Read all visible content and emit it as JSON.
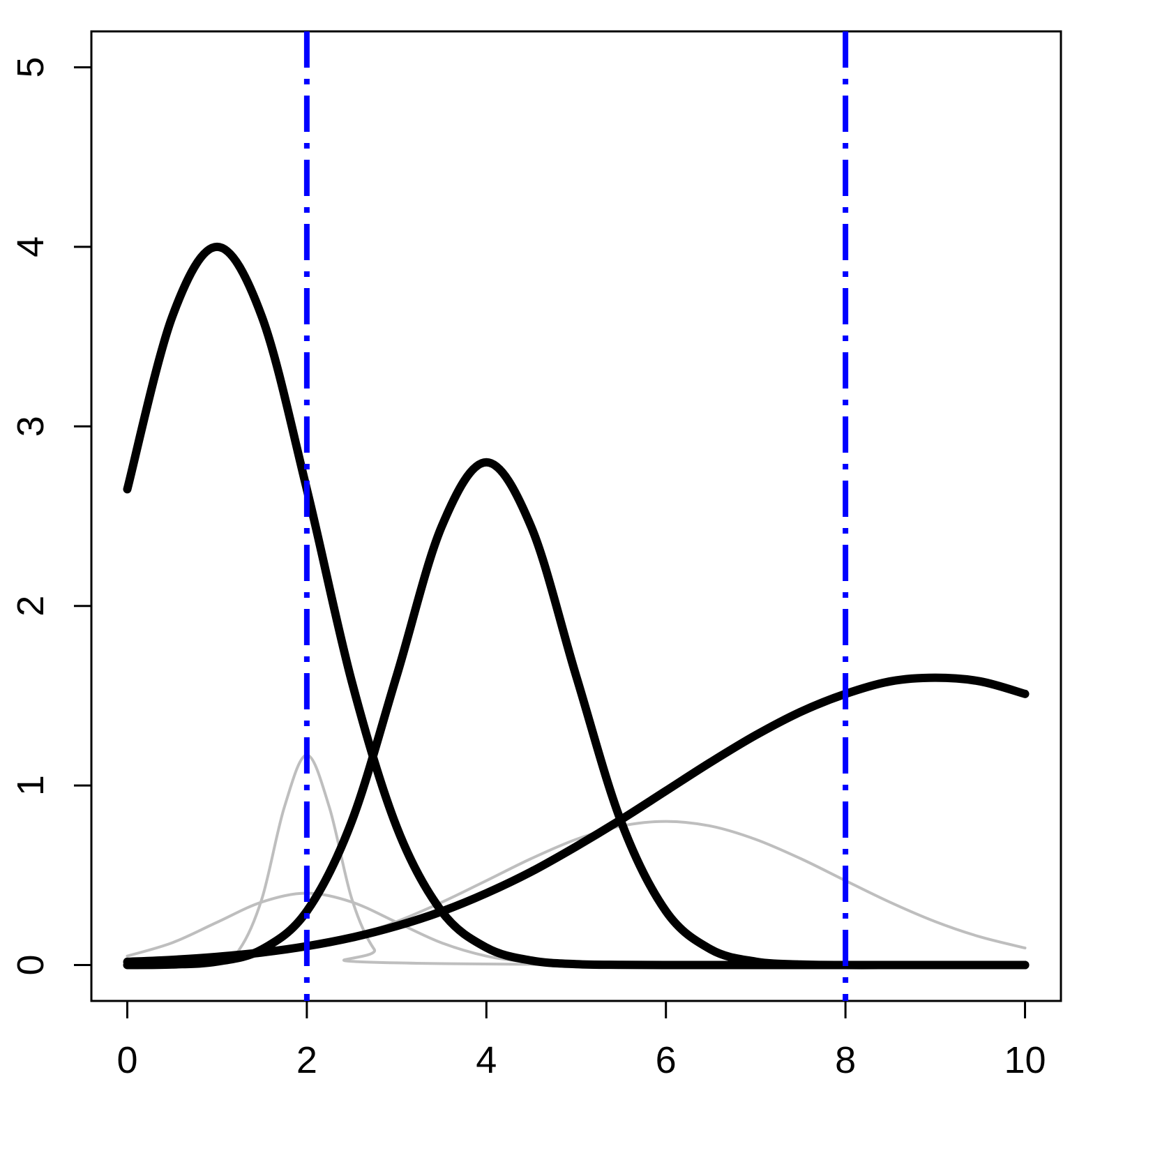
{
  "chart_data": {
    "type": "line",
    "x": [
      0,
      0.5,
      1,
      1.5,
      2,
      2.5,
      3,
      3.5,
      4,
      4.5,
      5,
      5.5,
      6,
      6.5,
      7,
      7.5,
      8,
      8.5,
      9,
      9.5,
      10
    ],
    "series": [
      {
        "color": "#bebebe",
        "width": 4,
        "x": [
          0,
          1,
          1.25,
          1.5,
          1.75,
          2,
          2.25,
          2.5,
          2.75,
          3,
          10
        ],
        "values": [
          0,
          0.012,
          0.088,
          0.37,
          0.88,
          1.17,
          0.88,
          0.37,
          0.088,
          0.012,
          0
        ]
      },
      {
        "color": "#bebebe",
        "width": 4,
        "values": [
          0.05,
          0.124,
          0.238,
          0.351,
          0.4,
          0.351,
          0.238,
          0.124,
          0.05,
          0.015,
          0.004,
          0,
          0,
          0,
          0,
          0,
          0,
          0,
          0,
          0,
          0
        ]
      },
      {
        "color": "#bebebe",
        "width": 4,
        "values": [
          0.007,
          0.014,
          0.029,
          0.054,
          0.095,
          0.157,
          0.242,
          0.349,
          0.47,
          0.593,
          0.7,
          0.774,
          0.8,
          0.774,
          0.7,
          0.593,
          0.47,
          0.349,
          0.242,
          0.157,
          0.095
        ]
      },
      {
        "color": "#000000",
        "width": 12,
        "values": [
          2.65,
          3.61,
          4,
          3.61,
          2.65,
          1.58,
          0.77,
          0.3,
          0.097,
          0.025,
          0.005,
          0.001,
          0,
          0,
          0,
          0,
          0,
          0,
          0,
          0,
          0
        ]
      },
      {
        "color": "#000000",
        "width": 12,
        "values": [
          0,
          0.003,
          0.019,
          0.087,
          0.3,
          0.8,
          1.61,
          2.44,
          2.8,
          2.44,
          1.61,
          0.8,
          0.3,
          0.087,
          0.019,
          0.003,
          0,
          0,
          0,
          0,
          0
        ]
      },
      {
        "color": "#000000",
        "width": 12,
        "values": [
          0.018,
          0.029,
          0.046,
          0.07,
          0.105,
          0.153,
          0.217,
          0.298,
          0.4,
          0.52,
          0.66,
          0.81,
          0.97,
          1.13,
          1.28,
          1.41,
          1.51,
          1.58,
          1.6,
          1.58,
          1.51
        ]
      }
    ],
    "vlines": [
      2,
      8
    ],
    "vline_color": "#0000ff",
    "xlim": [
      -0.4,
      10.4
    ],
    "ylim": [
      -0.2,
      5.2
    ],
    "xticks": [
      0,
      2,
      4,
      6,
      8,
      10
    ],
    "yticks": [
      0,
      1,
      2,
      3,
      4,
      5
    ]
  }
}
